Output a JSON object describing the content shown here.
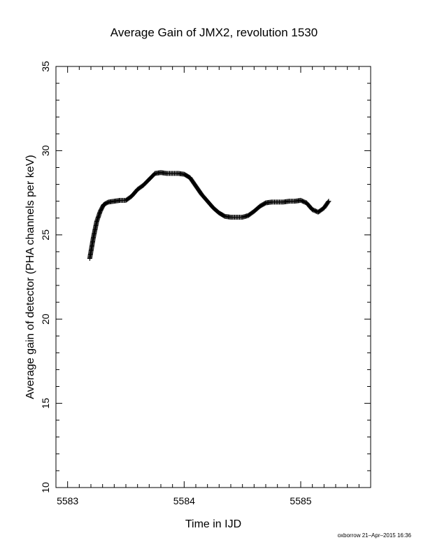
{
  "chart_data": {
    "type": "scatter",
    "title": "Average Gain of JMX2, revolution 1530",
    "xlabel": "Time in IJD",
    "ylabel": "Average gain of detector (PHA channels per keV)",
    "xlim": [
      5582.9,
      5585.6
    ],
    "ylim": [
      10,
      35
    ],
    "x_ticks": [
      5583,
      5584,
      5585
    ],
    "y_ticks": [
      10,
      15,
      20,
      25,
      30,
      35
    ],
    "marker": "+",
    "grid": false,
    "legend": "none",
    "color": "#000000",
    "series": [
      {
        "x": [
          5583.19,
          5583.22,
          5583.25,
          5583.28,
          5583.31,
          5583.35,
          5583.4,
          5583.45,
          5583.5,
          5583.55,
          5583.6,
          5583.65,
          5583.7,
          5583.75,
          5583.8,
          5583.85,
          5583.9,
          5583.95,
          5584.0,
          5584.05,
          5584.1,
          5584.15,
          5584.2,
          5584.25,
          5584.3,
          5584.35,
          5584.4,
          5584.45,
          5584.5,
          5584.55,
          5584.6,
          5584.65,
          5584.7,
          5584.75,
          5584.8,
          5584.85,
          5584.9,
          5584.95,
          5585.0,
          5585.05,
          5585.1,
          5585.15,
          5585.2,
          5585.24
        ],
        "y": [
          23.6,
          24.8,
          25.8,
          26.4,
          26.8,
          26.95,
          27.0,
          27.05,
          27.05,
          27.3,
          27.7,
          27.95,
          28.3,
          28.65,
          28.7,
          28.65,
          28.65,
          28.65,
          28.6,
          28.4,
          27.9,
          27.4,
          27.0,
          26.6,
          26.3,
          26.1,
          26.05,
          26.05,
          26.05,
          26.15,
          26.4,
          26.7,
          26.9,
          26.95,
          26.95,
          26.95,
          27.0,
          27.0,
          27.05,
          26.9,
          26.5,
          26.35,
          26.6,
          27.0
        ]
      }
    ]
  },
  "footer": "oxborrow 21–Apr–2015 16:36"
}
